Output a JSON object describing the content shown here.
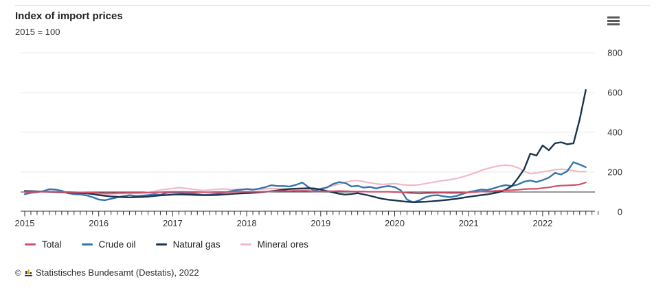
{
  "header": {
    "title": "Index of import prices",
    "subtitle": "2015 = 100"
  },
  "menu": {
    "icon": "hamburger-menu-icon"
  },
  "footer": {
    "copyright_symbol": "©",
    "source": "Statistisches Bundesamt (Destatis), 2022",
    "logo_icon": "destatis-bar-chart-icon"
  },
  "colors": {
    "grid": "#e8e8e8",
    "axis": "#333333",
    "baseline": "#2f2f2f",
    "text": "#333333"
  },
  "chart_data": {
    "type": "line",
    "title": "Index of import prices",
    "subtitle": "2015 = 100",
    "x_unit": "month",
    "x_start": "2015-01",
    "x_end": "2022-08",
    "x_tick_labels": [
      "2015",
      "2016",
      "2017",
      "2018",
      "2019",
      "2020",
      "2021",
      "2022"
    ],
    "y_ticks": [
      0,
      200,
      400,
      600,
      800
    ],
    "ylim": [
      0,
      860
    ],
    "baseline_value": 100,
    "grid": true,
    "legend_position": "bottom",
    "y_axis_side": "right",
    "series": [
      {
        "name": "Total",
        "color": "#d0506a",
        "values": [
          100,
          100,
          101,
          101,
          102,
          101,
          101,
          100,
          99,
          98,
          97,
          97,
          95,
          94,
          94,
          95,
          95,
          96,
          96,
          96,
          97,
          98,
          99,
          100,
          101,
          101,
          101,
          100,
          100,
          99,
          99,
          100,
          100,
          100,
          101,
          101,
          101,
          101,
          101,
          102,
          103,
          104,
          105,
          105,
          106,
          106,
          105,
          103,
          103,
          104,
          104,
          105,
          104,
          103,
          102,
          102,
          101,
          101,
          101,
          101,
          100,
          99,
          96,
          94,
          93,
          94,
          95,
          96,
          96,
          95,
          95,
          96,
          98,
          100,
          102,
          103,
          105,
          107,
          108,
          109,
          111,
          114,
          116,
          116,
          120,
          123,
          129,
          132,
          133,
          135,
          138,
          148
        ]
      },
      {
        "name": "Crude oil",
        "color": "#3575ac",
        "values": [
          89,
          96,
          99,
          104,
          114,
          112,
          106,
          94,
          89,
          88,
          83,
          74,
          62,
          59,
          66,
          73,
          79,
          84,
          80,
          82,
          84,
          89,
          86,
          96,
          98,
          97,
          93,
          94,
          90,
          85,
          87,
          91,
          96,
          101,
          108,
          111,
          115,
          112,
          117,
          124,
          134,
          130,
          130,
          128,
          136,
          148,
          125,
          107,
          115,
          122,
          140,
          150,
          145,
          128,
          131,
          122,
          126,
          118,
          126,
          130,
          125,
          108,
          62,
          48,
          58,
          74,
          82,
          84,
          78,
          74,
          80,
          90,
          100,
          106,
          112,
          110,
          118,
          128,
          135,
          130,
          138,
          152,
          158,
          150,
          160,
          172,
          196,
          188,
          205,
          250,
          238,
          225
        ]
      },
      {
        "name": "Natural gas",
        "color": "#1a3350",
        "values": [
          105,
          104,
          103,
          102,
          101,
          100,
          99,
          98,
          97,
          95,
          93,
          90,
          85,
          81,
          78,
          76,
          74,
          73,
          74,
          75,
          77,
          80,
          83,
          85,
          87,
          88,
          87,
          86,
          85,
          84,
          84,
          85,
          87,
          89,
          91,
          93,
          94,
          96,
          98,
          101,
          104,
          108,
          112,
          115,
          117,
          118,
          119,
          118,
          112,
          105,
          98,
          91,
          87,
          90,
          94,
          88,
          81,
          73,
          66,
          61,
          58,
          54,
          51,
          49,
          50,
          51,
          53,
          56,
          59,
          62,
          66,
          71,
          76,
          80,
          84,
          88,
          93,
          100,
          112,
          130,
          170,
          215,
          293,
          283,
          334,
          310,
          345,
          350,
          340,
          345,
          465,
          613
        ]
      },
      {
        "name": "Mineral ores",
        "color": "#f2b8c6",
        "values": [
          106,
          104,
          103,
          102,
          101,
          100,
          99,
          97,
          96,
          95,
          94,
          93,
          91,
          90,
          90,
          92,
          93,
          94,
          93,
          95,
          98,
          103,
          110,
          114,
          118,
          122,
          119,
          115,
          111,
          108,
          110,
          113,
          116,
          113,
          112,
          114,
          113,
          111,
          113,
          116,
          118,
          117,
          115,
          113,
          112,
          111,
          112,
          113,
          118,
          125,
          132,
          140,
          148,
          156,
          158,
          152,
          146,
          141,
          138,
          140,
          142,
          138,
          135,
          134,
          137,
          142,
          148,
          153,
          158,
          162,
          168,
          176,
          185,
          196,
          208,
          218,
          226,
          232,
          235,
          232,
          222,
          205,
          192,
          196,
          202,
          206,
          212,
          215,
          212,
          207,
          202,
          203
        ]
      }
    ]
  }
}
